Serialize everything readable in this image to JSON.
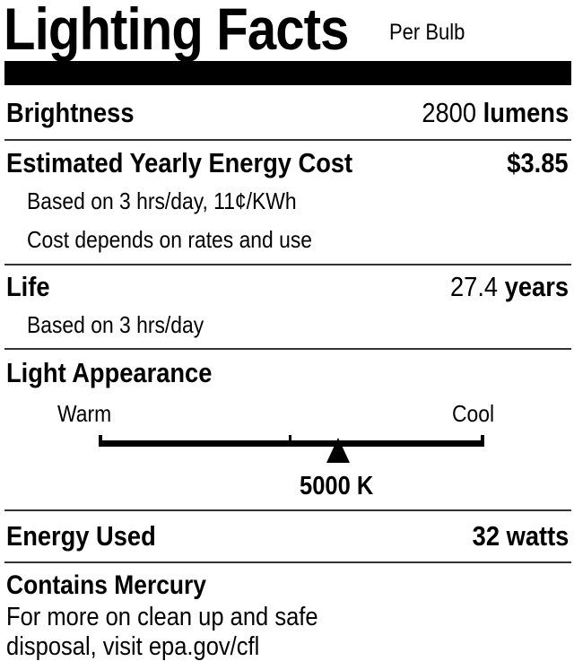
{
  "header": {
    "title": "Lighting Facts",
    "subtitle": "Per Bulb"
  },
  "brightness": {
    "label": "Brightness",
    "value": "2800",
    "unit": "lumens"
  },
  "energy_cost": {
    "label": "Estimated Yearly Energy Cost",
    "value": "$3.85",
    "note1": "Based on 3 hrs/day, 11¢/KWh",
    "note2": "Cost depends on rates and use"
  },
  "life": {
    "label": "Life",
    "value": "27.4",
    "unit": "years",
    "note": "Based on 3 hrs/day"
  },
  "light_appearance": {
    "label": "Light Appearance",
    "warm_label": "Warm",
    "cool_label": "Cool",
    "value": "5000 K",
    "marker_position": 0.62
  },
  "energy_used": {
    "label": "Energy Used",
    "value": "32 watts"
  },
  "mercury": {
    "label": "Contains Mercury",
    "line1": "For more on clean up and safe",
    "line2": "disposal, visit epa.gov/cfl"
  }
}
